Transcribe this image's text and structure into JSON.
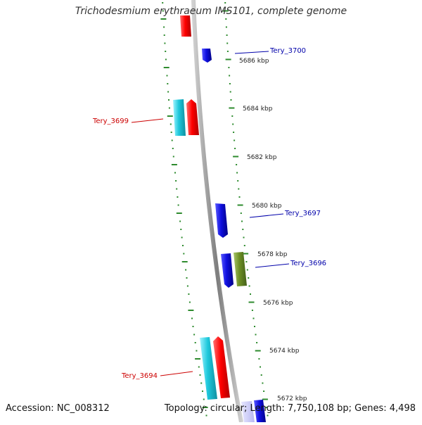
{
  "header": {
    "title": "Trichodesmium erythraeum IMS101, complete genome"
  },
  "footer": {
    "accession": "Accession: NC_008312",
    "topology": "Topology: circular; Length: 7,750,108 bp; Genes: 4,498"
  },
  "colors": {
    "tick_green": "#2e8b2e",
    "backbone": "#8a8a8a",
    "forward_red": "#ff0000",
    "forward_cyan": "#1ec8dc",
    "reverse_blue": "#1010e0",
    "olive": "#6b8e23",
    "label_red": "#cc0000",
    "label_blue": "#0000aa"
  },
  "tick_labels": [
    "5686 kbp",
    "5684 kbp",
    "5682 kbp",
    "5680 kbp",
    "5678 kbp",
    "5676 kbp",
    "5674 kbp",
    "5672 kbp"
  ],
  "gene_labels": [
    {
      "text": "Tery_3700",
      "color": "#0000aa"
    },
    {
      "text": "Tery_3699",
      "color": "#cc0000"
    },
    {
      "text": "Tery_3697",
      "color": "#0000aa"
    },
    {
      "text": "Tery_3696",
      "color": "#0000aa"
    },
    {
      "text": "Tery_3694",
      "color": "#cc0000"
    }
  ]
}
